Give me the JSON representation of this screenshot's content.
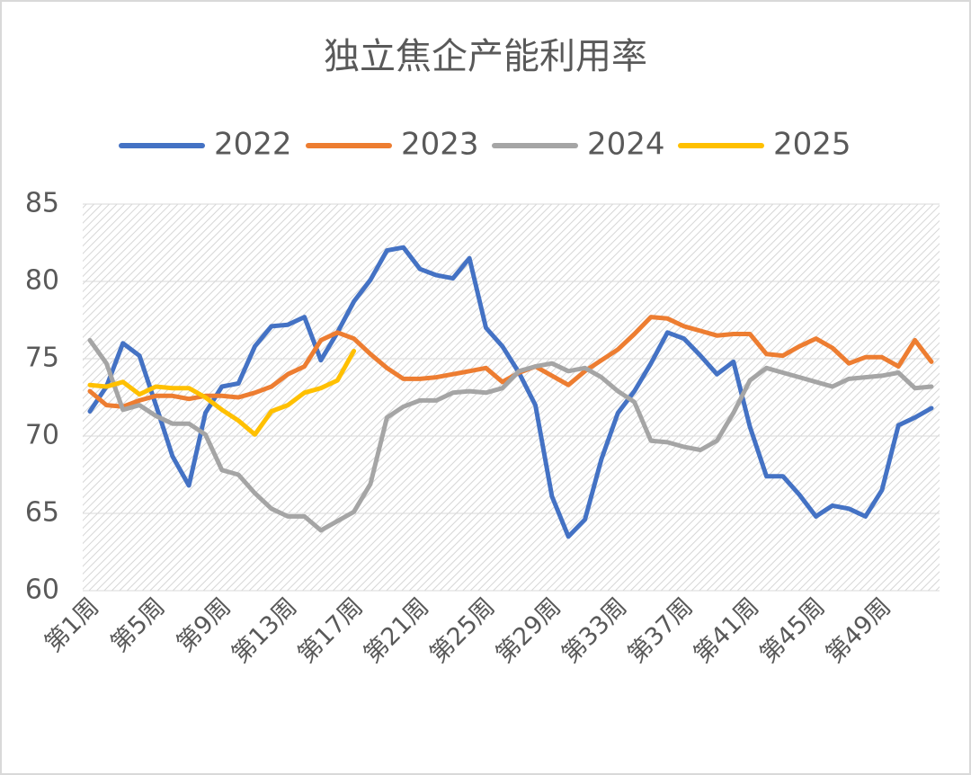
{
  "chart_data": {
    "type": "line",
    "title": "独立焦企产能利用率",
    "categories": [
      "第1周",
      null,
      null,
      null,
      "第5周",
      null,
      null,
      null,
      "第9周",
      null,
      null,
      null,
      "第13周",
      null,
      null,
      null,
      "第17周",
      null,
      null,
      null,
      "第21周",
      null,
      null,
      null,
      "第25周",
      null,
      null,
      null,
      "第29周",
      null,
      null,
      null,
      "第33周",
      null,
      null,
      null,
      "第37周",
      null,
      null,
      null,
      "第41周",
      null,
      null,
      null,
      "第45周",
      null,
      null,
      null,
      "第49周",
      null,
      null,
      null
    ],
    "series": [
      {
        "name": "2022",
        "color": "#4472c4",
        "values": [
          71.6,
          73.2,
          76.0,
          75.2,
          72.0,
          68.7,
          66.8,
          71.5,
          73.2,
          73.4,
          75.8,
          77.1,
          77.2,
          77.7,
          74.9,
          76.7,
          78.7,
          80.1,
          82.0,
          82.2,
          80.8,
          80.4,
          80.2,
          81.5,
          77.0,
          75.8,
          74.1,
          72.0,
          66.1,
          63.5,
          64.6,
          68.5,
          71.5,
          72.9,
          74.7,
          76.7,
          76.3,
          75.2,
          74.0,
          74.8,
          70.6,
          67.4,
          67.4,
          66.2,
          64.8,
          65.5,
          65.3,
          64.8,
          66.5,
          70.7,
          71.2,
          71.8
        ]
      },
      {
        "name": "2023",
        "color": "#ed7d31",
        "values": [
          72.9,
          72.0,
          71.9,
          72.3,
          72.6,
          72.6,
          72.4,
          72.6,
          72.6,
          72.5,
          72.8,
          73.2,
          74.0,
          74.5,
          76.2,
          76.7,
          76.3,
          75.3,
          74.4,
          73.7,
          73.7,
          73.8,
          74.0,
          74.2,
          74.4,
          73.5,
          74.1,
          74.5,
          73.9,
          73.3,
          74.2,
          74.9,
          75.6,
          76.6,
          77.7,
          77.6,
          77.1,
          76.8,
          76.5,
          76.6,
          76.6,
          75.3,
          75.2,
          75.8,
          76.3,
          75.7,
          74.7,
          75.1,
          75.1,
          74.5,
          76.2,
          74.8
        ]
      },
      {
        "name": "2024",
        "color": "#a5a5a5",
        "values": [
          76.2,
          74.7,
          71.7,
          72.0,
          71.3,
          70.8,
          70.8,
          70.1,
          67.8,
          67.5,
          66.3,
          65.3,
          64.8,
          64.8,
          63.9,
          64.5,
          65.1,
          66.9,
          71.2,
          71.9,
          72.3,
          72.3,
          72.8,
          72.9,
          72.8,
          73.1,
          74.2,
          74.5,
          74.7,
          74.2,
          74.4,
          73.8,
          72.9,
          72.2,
          69.7,
          69.6,
          69.3,
          69.1,
          69.7,
          71.5,
          73.6,
          74.4,
          74.1,
          73.8,
          73.5,
          73.2,
          73.7,
          73.8,
          73.9,
          74.1,
          73.1,
          73.2
        ]
      },
      {
        "name": "2025",
        "color": "#ffc000",
        "values": [
          73.3,
          73.2,
          73.5,
          72.7,
          73.2,
          73.1,
          73.1,
          72.5,
          71.7,
          71.0,
          70.1,
          71.6,
          72.0,
          72.8,
          73.1,
          73.6,
          75.5,
          null,
          null,
          null,
          null,
          null,
          null,
          null,
          null,
          null,
          null,
          null,
          null,
          null,
          null,
          null,
          null,
          null,
          null,
          null,
          null,
          null,
          null,
          null,
          null,
          null,
          null,
          null,
          null,
          null,
          null,
          null,
          null,
          null,
          null,
          null
        ]
      }
    ],
    "ylim": [
      60,
      85
    ],
    "yticks": [
      60,
      65,
      70,
      75,
      80,
      85
    ],
    "grid": true,
    "legend": "top"
  }
}
